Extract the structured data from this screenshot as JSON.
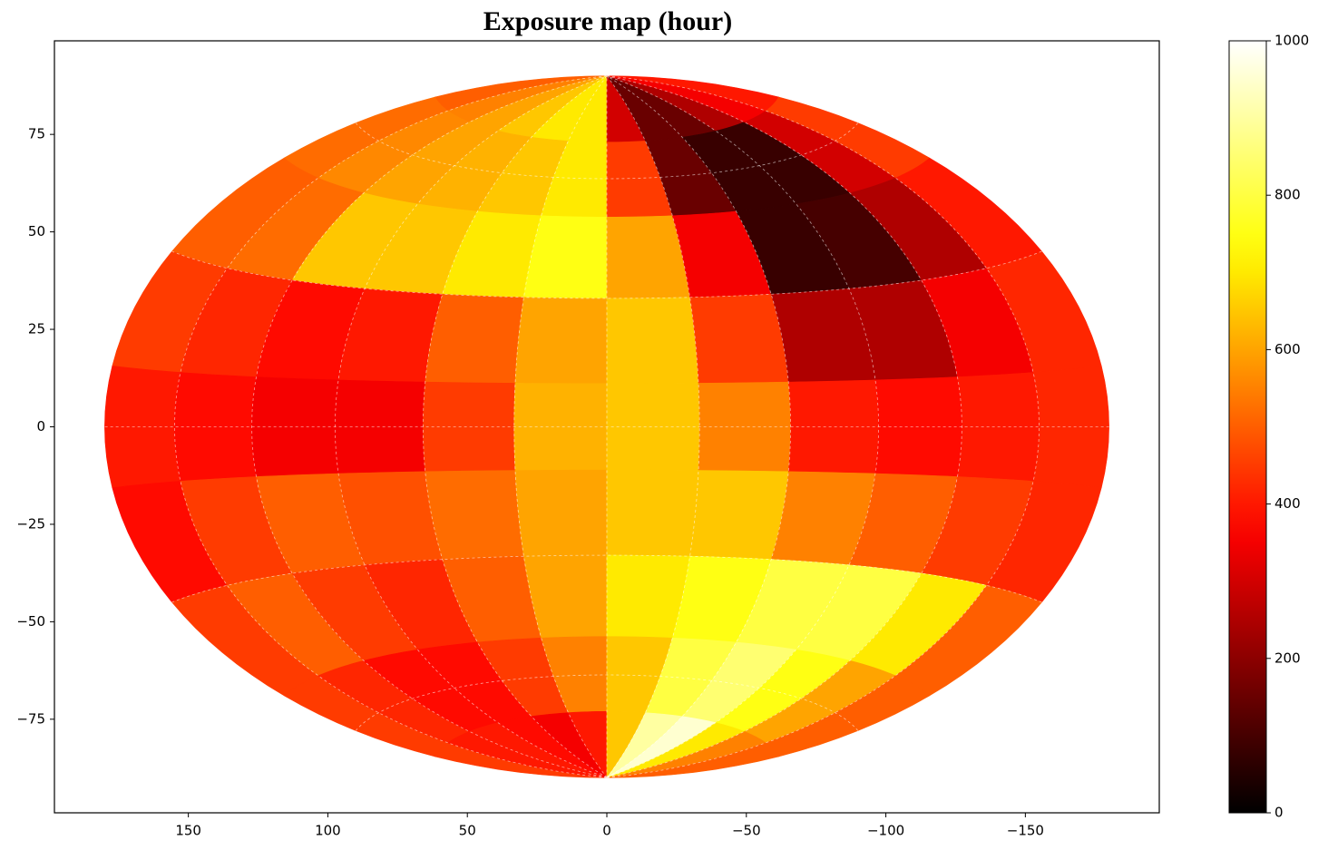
{
  "chart_data": {
    "type": "hammer-heatmap",
    "title": "Exposure map (hour)",
    "lon_bins": [
      180,
      150,
      120,
      90,
      60,
      30,
      0,
      -30,
      -60,
      -90,
      -120,
      -150,
      -180
    ],
    "lat_bins": [
      90,
      70,
      50,
      30,
      10,
      -10,
      -30,
      -50,
      -70,
      -90
    ],
    "values": [
      [
        500,
        550,
        600,
        650,
        700,
        700,
        300,
        150,
        150,
        250,
        350,
        400
      ],
      [
        520,
        560,
        600,
        620,
        650,
        700,
        450,
        150,
        80,
        80,
        300,
        450
      ],
      [
        500,
        520,
        650,
        650,
        700,
        750,
        600,
        350,
        80,
        100,
        250,
        400
      ],
      [
        450,
        420,
        380,
        400,
        500,
        600,
        650,
        450,
        250,
        250,
        350,
        420
      ],
      [
        400,
        380,
        350,
        350,
        450,
        620,
        650,
        550,
        400,
        380,
        400,
        420
      ],
      [
        380,
        450,
        500,
        480,
        520,
        600,
        650,
        650,
        550,
        500,
        450,
        420
      ],
      [
        450,
        500,
        450,
        420,
        500,
        600,
        700,
        750,
        800,
        800,
        700,
        500
      ],
      [
        450,
        420,
        380,
        380,
        450,
        550,
        650,
        800,
        850,
        750,
        600,
        500
      ],
      [
        450,
        400,
        400,
        380,
        350,
        400,
        650,
        900,
        950,
        700,
        550,
        500
      ]
    ],
    "colormap": "hot",
    "xlim": [
      198,
      -198
    ],
    "ylim": [
      -99,
      99
    ],
    "xticks": [
      150,
      100,
      50,
      0,
      {
        "value": -50,
        "label": "−50"
      },
      {
        "value": -100,
        "label": "−100"
      },
      {
        "value": -150,
        "label": "−150"
      }
    ],
    "yticks": [
      {
        "value": -75,
        "label": "−75"
      },
      {
        "value": -50,
        "label": "−50"
      },
      {
        "value": -25,
        "label": "−25"
      },
      0,
      25,
      50,
      75
    ],
    "clim": [
      0,
      1000
    ],
    "cticks": [
      0,
      200,
      400,
      600,
      800,
      1000
    ],
    "grid": true
  }
}
